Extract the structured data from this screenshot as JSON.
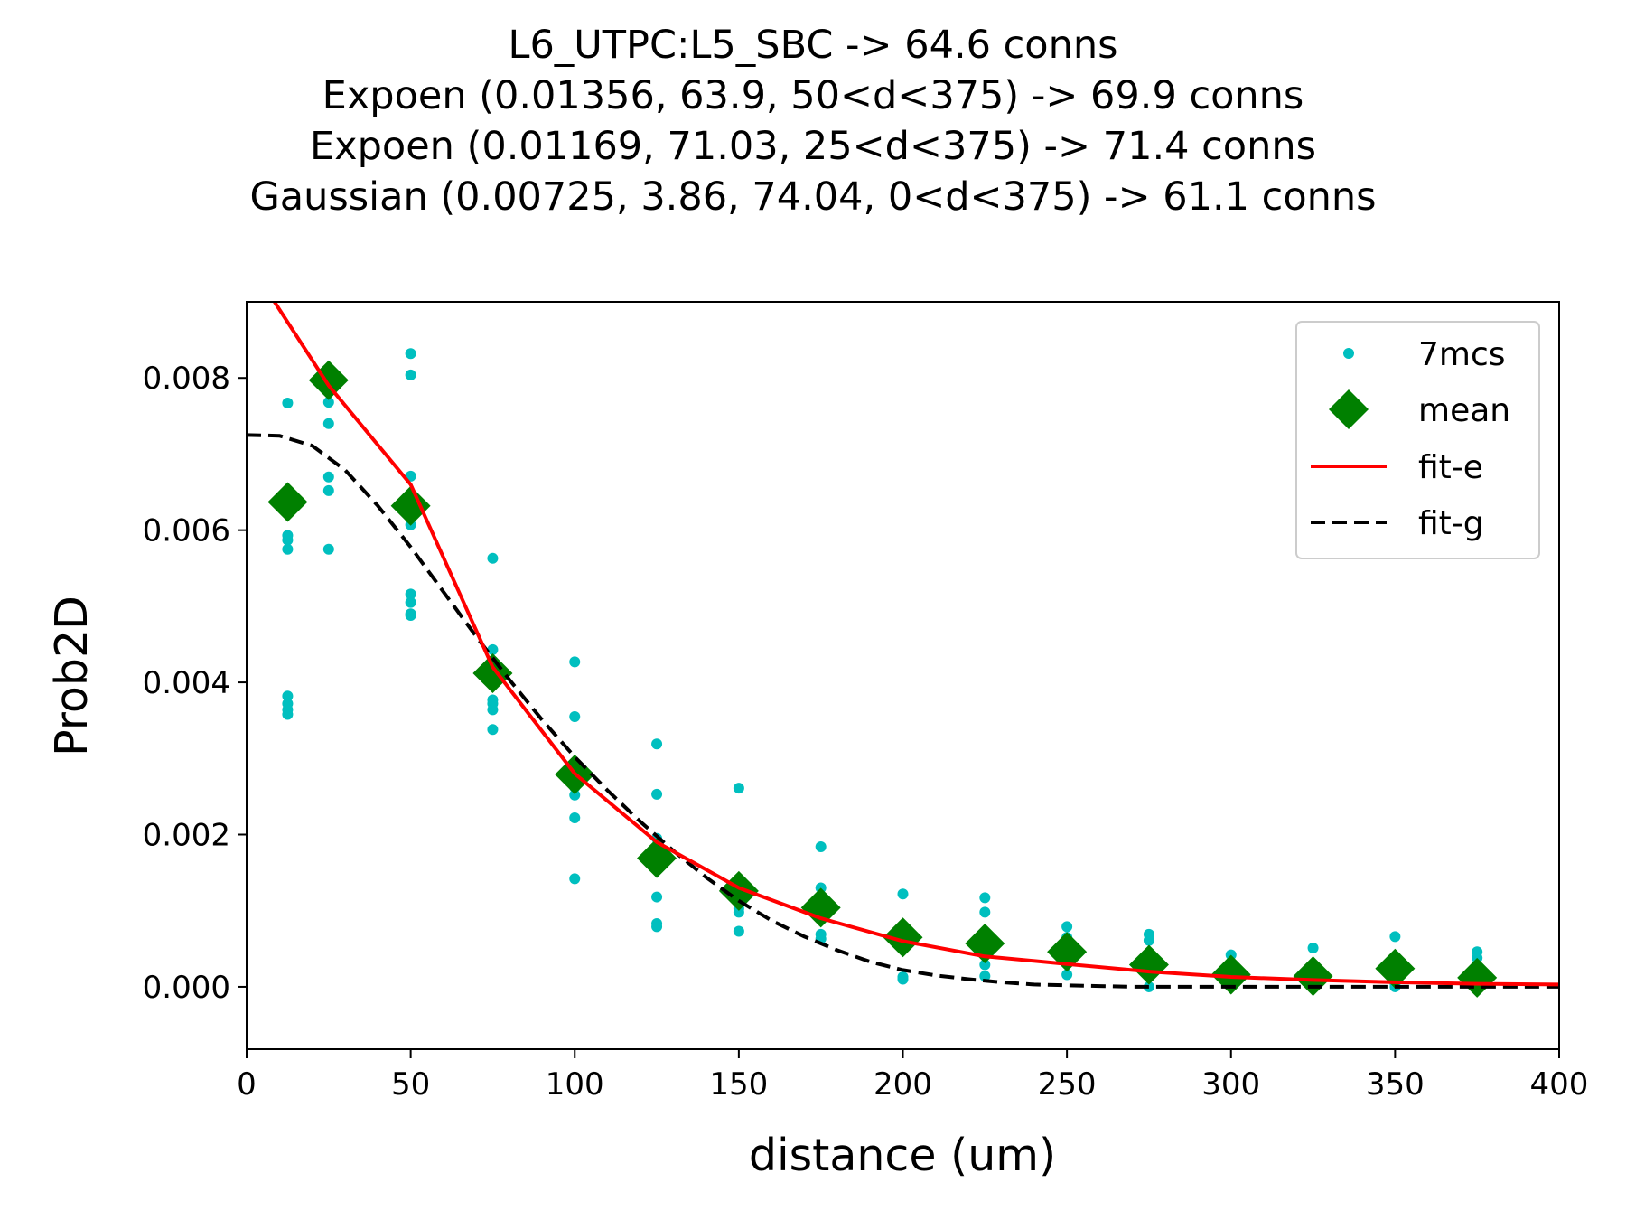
{
  "chart_data": {
    "type": "scatter",
    "title_lines": [
      "L6_UTPC:L5_SBC -> 64.6 conns",
      "Expoen (0.01356, 63.9, 50<d<375) -> 69.9 conns",
      "Expoen (0.01169, 71.03, 25<d<375) -> 71.4 conns",
      "Gaussian (0.00725, 3.86, 74.04, 0<d<375) -> 61.1 conns"
    ],
    "xlabel": "distance (um)",
    "ylabel": "Prob2D",
    "xlim": [
      0,
      400
    ],
    "ylim": [
      -0.00082,
      0.009
    ],
    "xticks": [
      0,
      50,
      100,
      150,
      200,
      250,
      300,
      350,
      400
    ],
    "xtick_labels": [
      "0",
      "50",
      "100",
      "150",
      "200",
      "250",
      "300",
      "350",
      "400"
    ],
    "yticks": [
      0,
      0.002,
      0.004,
      0.006,
      0.008
    ],
    "ytick_labels": [
      "0.000",
      "0.002",
      "0.004",
      "0.006",
      "0.008"
    ],
    "legend_position": "upper right",
    "colors": {
      "points": "#00bfbf",
      "mean": "#008000",
      "fit_e": "#ff0000",
      "fit_g": "#000000"
    },
    "legend": [
      {
        "label": "7mcs",
        "style": "points"
      },
      {
        "label": "mean",
        "style": "diamond"
      },
      {
        "label": "fit-e",
        "style": "solid-line"
      },
      {
        "label": "fit-g",
        "style": "dashed-line"
      }
    ],
    "series": [
      {
        "name": "7mcs",
        "kind": "scatter",
        "x": [
          12.5,
          12.5,
          12.5,
          12.5,
          12.5,
          12.5,
          12.5,
          12.5,
          25,
          25,
          25,
          25,
          25,
          25,
          25,
          50,
          50,
          50,
          50,
          50,
          50,
          50,
          50,
          50,
          75,
          75,
          75,
          75,
          75,
          75,
          75,
          75,
          100,
          100,
          100,
          100,
          100,
          100,
          125,
          125,
          125,
          125,
          125,
          125,
          125,
          150,
          150,
          150,
          150,
          150,
          175,
          175,
          175,
          175,
          175,
          175,
          200,
          200,
          200,
          225,
          225,
          225,
          225,
          225,
          250,
          250,
          250,
          250,
          275,
          275,
          275,
          275,
          300,
          300,
          300,
          300,
          325,
          325,
          325,
          325,
          350,
          350,
          350,
          350,
          375,
          375,
          375,
          375
        ],
        "y": [
          0.00767,
          0.00593,
          0.00587,
          0.00575,
          0.00382,
          0.00372,
          0.00364,
          0.00358,
          0.00787,
          0.00768,
          0.0074,
          0.0067,
          0.00652,
          0.00575,
          0.00812,
          0.00832,
          0.00804,
          0.00671,
          0.00607,
          0.00516,
          0.00505,
          0.0049,
          0.00488,
          0.0062,
          0.00563,
          0.00443,
          0.00428,
          0.00377,
          0.00372,
          0.00364,
          0.00338,
          0.0041,
          0.00427,
          0.00355,
          0.00262,
          0.00252,
          0.00222,
          0.00142,
          0.00319,
          0.00253,
          0.00195,
          0.00162,
          0.00118,
          0.00083,
          0.00079,
          0.00261,
          0.00131,
          0.00103,
          0.00098,
          0.00073,
          0.00184,
          0.0013,
          0.00108,
          0.00098,
          0.00069,
          0.00063,
          0.00122,
          0.00013,
          0.0001,
          0.00117,
          0.00098,
          0.00058,
          0.00029,
          0.00014,
          0.00079,
          0.00065,
          0.0003,
          0.00016,
          0.00069,
          0.00061,
          0.00018,
          0.0,
          0.00042,
          0.0003,
          8e-05,
          1e-05,
          0.00051,
          0.00018,
          7e-05,
          0.0,
          0.00066,
          0.00028,
          4e-05,
          0.0,
          0.00046,
          0.00038,
          8e-05,
          0.0
        ]
      },
      {
        "name": "mean",
        "kind": "scatter",
        "x": [
          12.5,
          25,
          50,
          75,
          100,
          125,
          150,
          175,
          200,
          225,
          250,
          275,
          300,
          325,
          350,
          375
        ],
        "y": [
          0.00637,
          0.00797,
          0.00632,
          0.00412,
          0.00279,
          0.00169,
          0.00126,
          0.00104,
          0.00065,
          0.00057,
          0.00046,
          0.00029,
          0.00016,
          0.00014,
          0.00024,
          0.00012
        ]
      },
      {
        "name": "fit-e",
        "kind": "line",
        "x": [
          7,
          25,
          50,
          75,
          100,
          125,
          150,
          175,
          200,
          225,
          250,
          275,
          300,
          325,
          350,
          375,
          400
        ],
        "y": [
          0.0091,
          0.0079,
          0.0066,
          0.0042,
          0.0028,
          0.0019,
          0.0013,
          0.0009,
          0.0006,
          0.0004,
          0.0003,
          0.0002,
          0.00013,
          9e-05,
          6e-05,
          4e-05,
          3e-05
        ]
      },
      {
        "name": "fit-g",
        "kind": "line",
        "x": [
          0,
          10,
          20,
          30,
          40,
          50,
          60,
          70,
          80,
          90,
          100,
          110,
          120,
          130,
          140,
          150,
          160,
          170,
          180,
          190,
          200,
          210,
          220,
          230,
          240,
          250,
          260,
          270,
          280,
          290,
          300,
          320,
          340,
          360,
          380,
          400
        ],
        "y": [
          0.00725,
          0.00724,
          0.00711,
          0.00679,
          0.00632,
          0.00578,
          0.00519,
          0.0046,
          0.00404,
          0.00351,
          0.00302,
          0.00258,
          0.00217,
          0.00179,
          0.00144,
          0.00113,
          0.00087,
          0.00066,
          0.00048,
          0.00033,
          0.00022,
          0.00015,
          0.0001,
          6e-05,
          3e-05,
          2e-05,
          1e-05,
          0,
          0,
          0,
          0,
          0,
          0,
          0,
          0,
          0
        ]
      }
    ]
  }
}
